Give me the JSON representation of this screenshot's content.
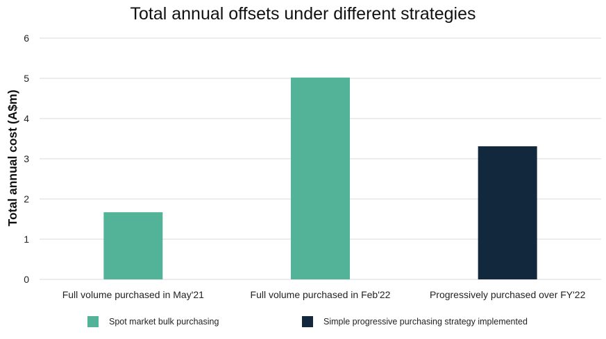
{
  "chart_data": {
    "type": "bar",
    "title": "Total annual offsets under different strategies",
    "xlabel": "",
    "ylabel": "Total annual cost (A$m)",
    "ylim": [
      0,
      6
    ],
    "yticks": [
      "0",
      "1",
      "2",
      "3",
      "4",
      "5",
      "6"
    ],
    "categories": [
      "Full volume purchased in May'21",
      "Full volume purchased in Feb'22",
      "Progressively purchased over FY'22"
    ],
    "values": [
      1.67,
      5.02,
      3.31
    ],
    "bar_series": [
      0,
      0,
      1
    ],
    "series": [
      {
        "name": "Spot market bulk purchasing",
        "color": "#52b399"
      },
      {
        "name": "Simple progressive purchasing strategy implemented",
        "color": "#12283d"
      }
    ],
    "grid": true,
    "legend_position": "bottom"
  }
}
